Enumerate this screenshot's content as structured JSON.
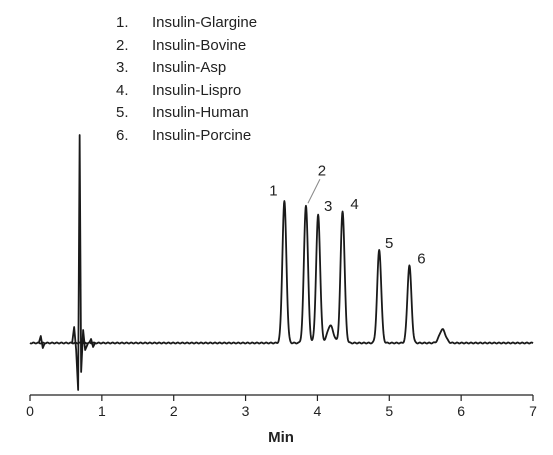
{
  "chart_data": {
    "type": "line",
    "xlabel": "Min",
    "ylabel": "",
    "xlim": [
      0,
      7
    ],
    "x_ticks": [
      "0",
      "1",
      "2",
      "3",
      "4",
      "5",
      "6",
      "7"
    ],
    "grid": false,
    "legend": [
      {
        "number": "1.",
        "name": "Insulin-Glargine"
      },
      {
        "number": "2.",
        "name": "Insulin-Bovine"
      },
      {
        "number": "3.",
        "name": "Insulin-Asp"
      },
      {
        "number": "4.",
        "name": "Insulin-Lispro"
      },
      {
        "number": "5.",
        "name": "Insulin-Human"
      },
      {
        "number": "6.",
        "name": "Insulin-Porcine"
      }
    ],
    "peaks": [
      {
        "label": "1",
        "time": 3.54,
        "height": 0.73
      },
      {
        "label": "2",
        "time": 3.84,
        "height": 0.71
      },
      {
        "label": "3",
        "time": 4.01,
        "height": 0.66
      },
      {
        "label": "4",
        "time": 4.35,
        "height": 0.68
      },
      {
        "label": "5",
        "time": 4.86,
        "height": 0.48
      },
      {
        "label": "6",
        "time": 5.28,
        "height": 0.4
      }
    ],
    "minor_peaks": [
      {
        "time": 4.18,
        "height": 0.09
      },
      {
        "time": 5.74,
        "height": 0.07
      }
    ]
  }
}
